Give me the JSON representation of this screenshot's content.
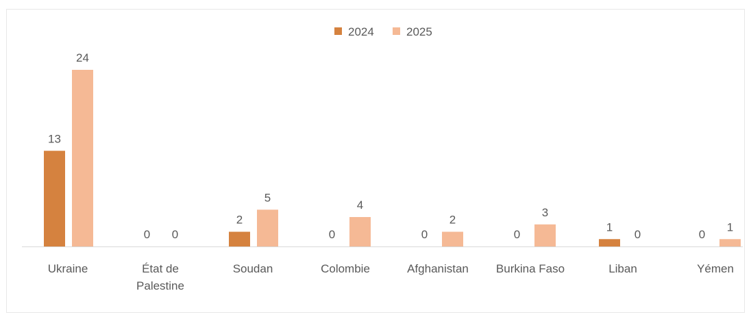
{
  "chart_data": {
    "type": "bar",
    "categories": [
      [
        "Ukraine"
      ],
      [
        "État de",
        "Palestine"
      ],
      [
        "Soudan"
      ],
      [
        "Colombie"
      ],
      [
        "Afghanistan"
      ],
      [
        "Burkina Faso"
      ],
      [
        "Liban"
      ],
      [
        "Yémen"
      ]
    ],
    "series": [
      {
        "name": "2024",
        "color": "#D5823F",
        "values": [
          13,
          0,
          2,
          0,
          0,
          0,
          1,
          0
        ]
      },
      {
        "name": "2025",
        "color": "#F5B995",
        "values": [
          24,
          0,
          5,
          4,
          2,
          3,
          0,
          1
        ]
      }
    ],
    "data_labels": true,
    "legend_position": "top",
    "grid": false,
    "ylim": [
      0,
      24
    ]
  }
}
